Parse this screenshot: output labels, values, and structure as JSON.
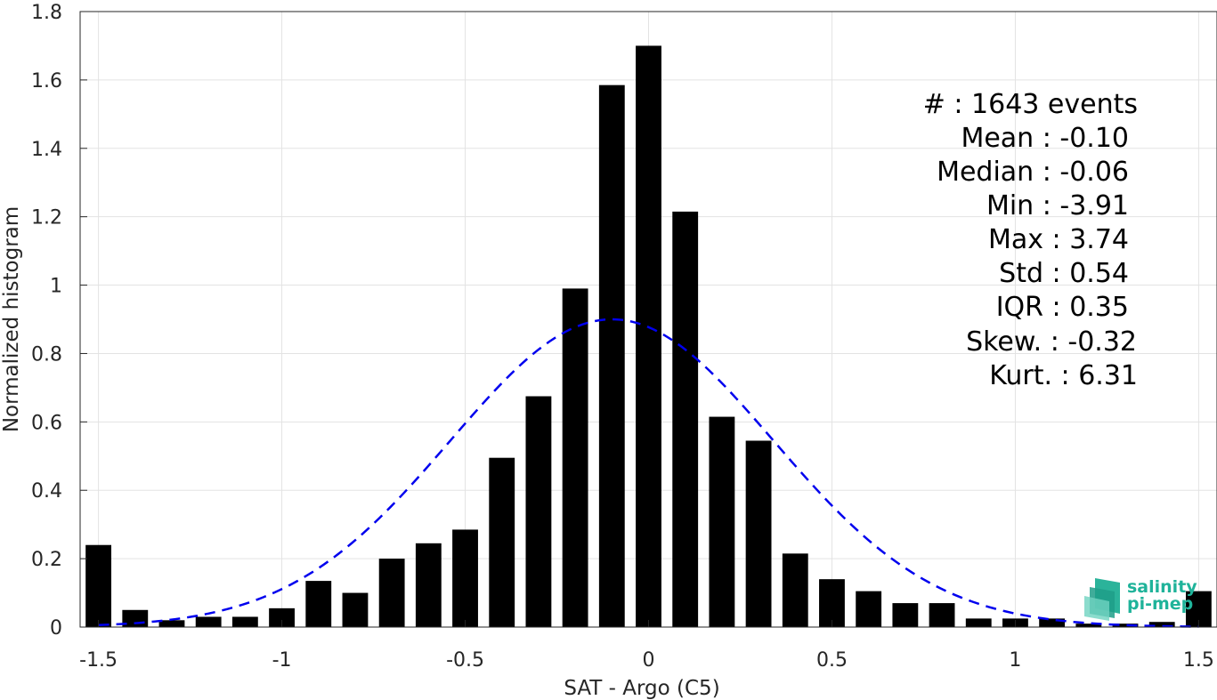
{
  "chart_data": {
    "type": "bar",
    "xlabel": "SAT - Argo (C5)",
    "ylabel": "Normalized histogram",
    "xlim": [
      -1.55,
      1.55
    ],
    "ylim": [
      0,
      1.8
    ],
    "xticks": [
      -1.5,
      -1,
      -0.5,
      0,
      0.5,
      1,
      1.5
    ],
    "xtick_labels": [
      "-1.5",
      "-1",
      "-0.5",
      "0",
      "0.5",
      "1",
      "1.5"
    ],
    "yticks": [
      0,
      0.2,
      0.4,
      0.6,
      0.8,
      1,
      1.2,
      1.4,
      1.6,
      1.8
    ],
    "ytick_labels": [
      "0",
      "0.2",
      "0.4",
      "0.6",
      "0.8",
      "1",
      "1.2",
      "1.4",
      "1.6",
      "1.8"
    ],
    "grid": true,
    "bar_width": 0.07,
    "bars": {
      "x": [
        -1.5,
        -1.4,
        -1.3,
        -1.2,
        -1.1,
        -1.0,
        -0.9,
        -0.8,
        -0.7,
        -0.6,
        -0.5,
        -0.4,
        -0.3,
        -0.2,
        -0.1,
        0.0,
        0.1,
        0.2,
        0.3,
        0.4,
        0.5,
        0.6,
        0.7,
        0.8,
        0.9,
        1.0,
        1.1,
        1.2,
        1.3,
        1.4,
        1.5
      ],
      "values": [
        0.24,
        0.05,
        0.02,
        0.03,
        0.03,
        0.055,
        0.135,
        0.1,
        0.2,
        0.245,
        0.285,
        0.495,
        0.675,
        0.99,
        1.585,
        1.7,
        1.215,
        0.615,
        0.545,
        0.215,
        0.14,
        0.105,
        0.07,
        0.07,
        0.025,
        0.025,
        0.025,
        0.01,
        0.01,
        0.015,
        0.105
      ],
      "color": "#000000"
    },
    "fit_curve": {
      "style": "dashed",
      "color": "#0000ee",
      "x_range": [
        -1.5,
        1.5
      ],
      "mean": -0.1,
      "std": 0.44,
      "peak": 0.9
    }
  },
  "stats": [
    "#  : 1643 events",
    "Mean : -0.10",
    "Median : -0.06",
    "Min : -3.91",
    "Max : 3.74",
    "Std : 0.54",
    "IQR : 0.35",
    "Skew. : -0.32",
    "Kurt. : 6.31"
  ],
  "logo": {
    "line1": "salinity",
    "line2": "pi-mep",
    "color": "#1fb39a"
  }
}
